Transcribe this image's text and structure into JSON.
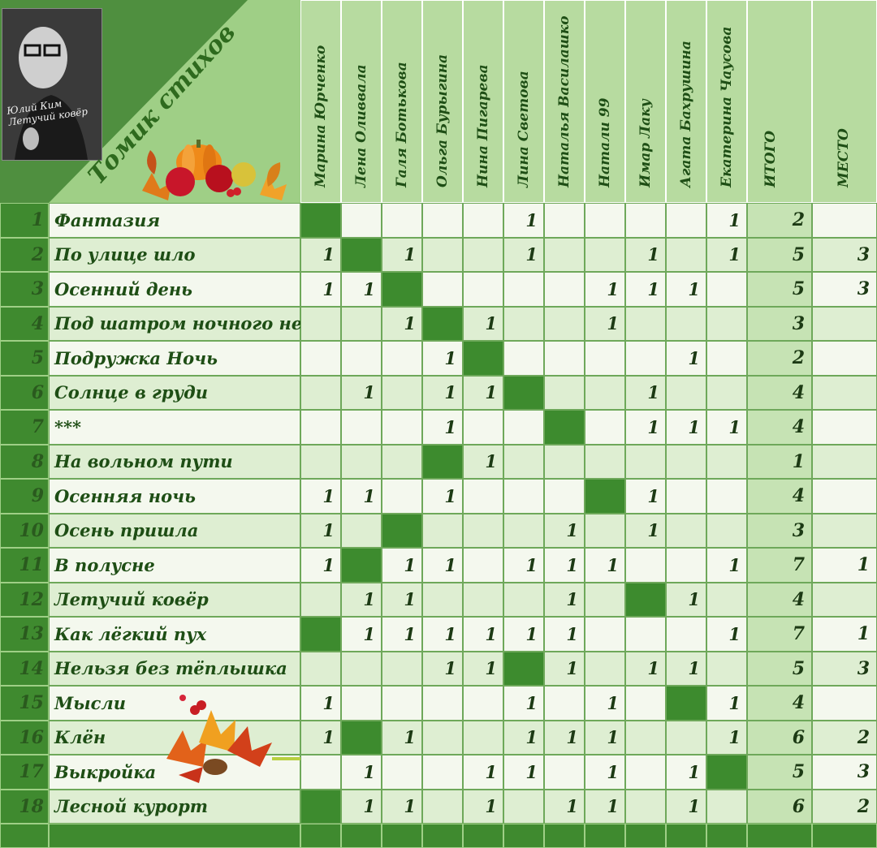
{
  "header": {
    "title": "Томик стихов",
    "portrait_caption": "Юлий Ким\nЛетучий ковёр"
  },
  "columns": {
    "participants": [
      "Марина Юрченко",
      "Лена Оливвала",
      "Галя Ботькова",
      "Ольга Бурыгина",
      "Нина Пигарева",
      "Лина Светова",
      "Наталья Василашко",
      "Натали 99",
      "Имар Лаку",
      "Агата Бахрушина",
      "Екатерина Чаусова"
    ],
    "total_label": "ИТОГО",
    "place_label": "МЕСТО"
  },
  "rows": [
    {
      "num": "1",
      "title": "Фантазия",
      "own": 0,
      "votes": [
        "",
        "",
        "",
        "",
        "",
        "1",
        "",
        "",
        "",
        "",
        "1"
      ],
      "total": "2",
      "place": ""
    },
    {
      "num": "2",
      "title": "По улице шло",
      "own": 1,
      "votes": [
        "1",
        "",
        "1",
        "",
        "",
        "1",
        "",
        "",
        "1",
        "",
        "1"
      ],
      "total": "5",
      "place": "3"
    },
    {
      "num": "3",
      "title": "Осенний день",
      "own": 2,
      "votes": [
        "1",
        "1",
        "",
        "",
        "",
        "",
        "",
        "1",
        "1",
        "1",
        ""
      ],
      "total": "5",
      "place": "3"
    },
    {
      "num": "4",
      "title": "Под шатром ночного неба",
      "own": 3,
      "votes": [
        "",
        "",
        "1",
        "",
        "1",
        "",
        "",
        "1",
        "",
        "",
        ""
      ],
      "total": "3",
      "place": ""
    },
    {
      "num": "5",
      "title": "Подружка Ночь",
      "own": 4,
      "votes": [
        "",
        "",
        "",
        "1",
        "",
        "",
        "",
        "",
        "",
        "1",
        ""
      ],
      "total": "2",
      "place": ""
    },
    {
      "num": "6",
      "title": "Солнце в груди",
      "own": 5,
      "votes": [
        "",
        "1",
        "",
        "1",
        "1",
        "",
        "",
        "",
        "1",
        "",
        ""
      ],
      "total": "4",
      "place": ""
    },
    {
      "num": "7",
      "title": "***",
      "own": 6,
      "votes": [
        "",
        "",
        "",
        "1",
        "",
        "",
        "",
        "",
        "1",
        "1",
        "1"
      ],
      "total": "4",
      "place": ""
    },
    {
      "num": "8",
      "title": "На вольном пути",
      "own": 3,
      "votes": [
        "",
        "",
        "",
        "",
        "1",
        "",
        "",
        "",
        "",
        "",
        ""
      ],
      "total": "1",
      "place": ""
    },
    {
      "num": "9",
      "title": "Осенняя ночь",
      "own": 7,
      "votes": [
        "1",
        "1",
        "",
        "1",
        "",
        "",
        "",
        "",
        "1",
        "",
        ""
      ],
      "total": "4",
      "place": ""
    },
    {
      "num": "10",
      "title": "Осень пришла",
      "own": 2,
      "votes": [
        "1",
        "",
        "",
        "",
        "",
        "",
        "1",
        "",
        "1",
        "",
        ""
      ],
      "total": "3",
      "place": ""
    },
    {
      "num": "11",
      "title": "В полусне",
      "own": 1,
      "votes": [
        "1",
        "",
        "1",
        "1",
        "",
        "1",
        "1",
        "1",
        "",
        "",
        "1"
      ],
      "total": "7",
      "place": "1"
    },
    {
      "num": "12",
      "title": "Летучий ковёр",
      "own": 8,
      "votes": [
        "",
        "1",
        "1",
        "",
        "",
        "",
        "1",
        "",
        "",
        "1",
        ""
      ],
      "total": "4",
      "place": ""
    },
    {
      "num": "13",
      "title": "Как лёгкий пух",
      "own": 0,
      "votes": [
        "",
        "1",
        "1",
        "1",
        "1",
        "1",
        "1",
        "",
        "",
        "",
        "1"
      ],
      "total": "7",
      "place": "1"
    },
    {
      "num": "14",
      "title": "Нельзя без тёплышка",
      "own": 5,
      "votes": [
        "",
        "",
        "",
        "1",
        "1",
        "",
        "1",
        "",
        "1",
        "1",
        ""
      ],
      "total": "5",
      "place": "3"
    },
    {
      "num": "15",
      "title": "Мысли",
      "own": 9,
      "votes": [
        "1",
        "",
        "",
        "",
        "",
        "1",
        "",
        "1",
        "",
        "",
        "1"
      ],
      "total": "4",
      "place": ""
    },
    {
      "num": "16",
      "title": "Клён",
      "own": 1,
      "votes": [
        "1",
        "",
        "1",
        "",
        "",
        "1",
        "1",
        "1",
        "",
        "",
        "1"
      ],
      "total": "6",
      "place": "2"
    },
    {
      "num": "17",
      "title": "Выкройка",
      "own": 10,
      "votes": [
        "",
        "1",
        "",
        "",
        "1",
        "1",
        "",
        "1",
        "",
        "1",
        ""
      ],
      "total": "5",
      "place": "3"
    },
    {
      "num": "18",
      "title": "Лесной курорт",
      "own": 0,
      "votes": [
        "",
        "1",
        "1",
        "",
        "1",
        "",
        "1",
        "1",
        "",
        "1",
        ""
      ],
      "total": "6",
      "place": "2"
    }
  ],
  "colors": {
    "dark_green": "#3f8a2f",
    "own_cell": "#3d8b2e",
    "light_cell": "#f4f8ee",
    "alt_cell": "#deeed2",
    "header_bg": "#b7dba0",
    "text_green": "#1e4e15"
  },
  "decorations": [
    "portrait-photo",
    "pumpkin-autumn-leaves",
    "blue-feather-icon",
    "autumn-leaves-bouquet"
  ]
}
